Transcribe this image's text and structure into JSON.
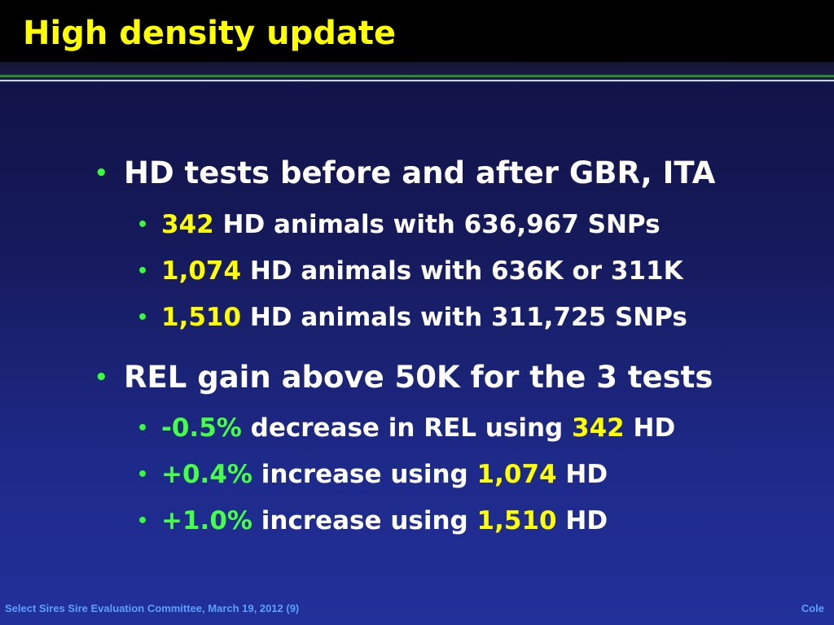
{
  "slide": {
    "title": "High density update",
    "bullets": [
      {
        "text": "HD tests before and after GBR, ITA",
        "sub": [
          {
            "n1": "342",
            "t1": " HD animals with 636,967 SNPs"
          },
          {
            "n1": "1,074",
            "t1": " HD animals with 636K or 311K"
          },
          {
            "n1": "1,510",
            "t1": " HD animals with 311,725 SNPs"
          }
        ]
      },
      {
        "text": "REL gain above 50K for the 3 tests",
        "sub": [
          {
            "pct": "-0.5%",
            "t1": " decrease in REL using ",
            "n2": "342",
            "t2": " HD"
          },
          {
            "pct": "+0.4%",
            "t1": " increase using ",
            "n2": "1,074",
            "t2": " HD"
          },
          {
            "pct": "+1.0%",
            "t1": " increase using ",
            "n2": "1,510",
            "t2": " HD"
          }
        ]
      }
    ]
  },
  "footer": {
    "left": "Select Sires Sire Evaluation Committee, March 19, 2012 (9)",
    "right": "Cole"
  },
  "colors": {
    "title": "#ffff00",
    "bullet": "#33ff33",
    "number_highlight": "#ffff00",
    "percent_highlight": "#44ff44",
    "footer": "#5aa0ff",
    "text": "#ffffff"
  }
}
